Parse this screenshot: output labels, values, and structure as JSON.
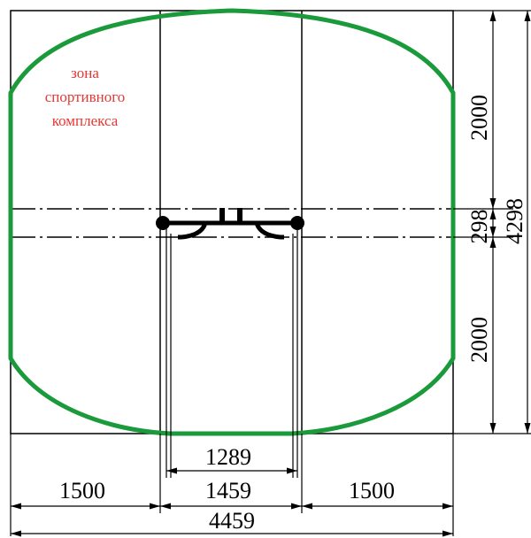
{
  "zone_label": {
    "line1": "зона",
    "line2": "спортивного",
    "line3": "комплекса"
  },
  "dimensions": {
    "total_width": "4459",
    "left_clearance": "1500",
    "center_width": "1459",
    "inner_width": "1289",
    "right_clearance": "1500",
    "total_height": "4298",
    "upper_height": "2000",
    "middle_height": "298",
    "lower_height": "2000"
  },
  "colors": {
    "zone_outline": "#1a9a3a",
    "zone_label": "#e53935",
    "lines": "#000000"
  }
}
